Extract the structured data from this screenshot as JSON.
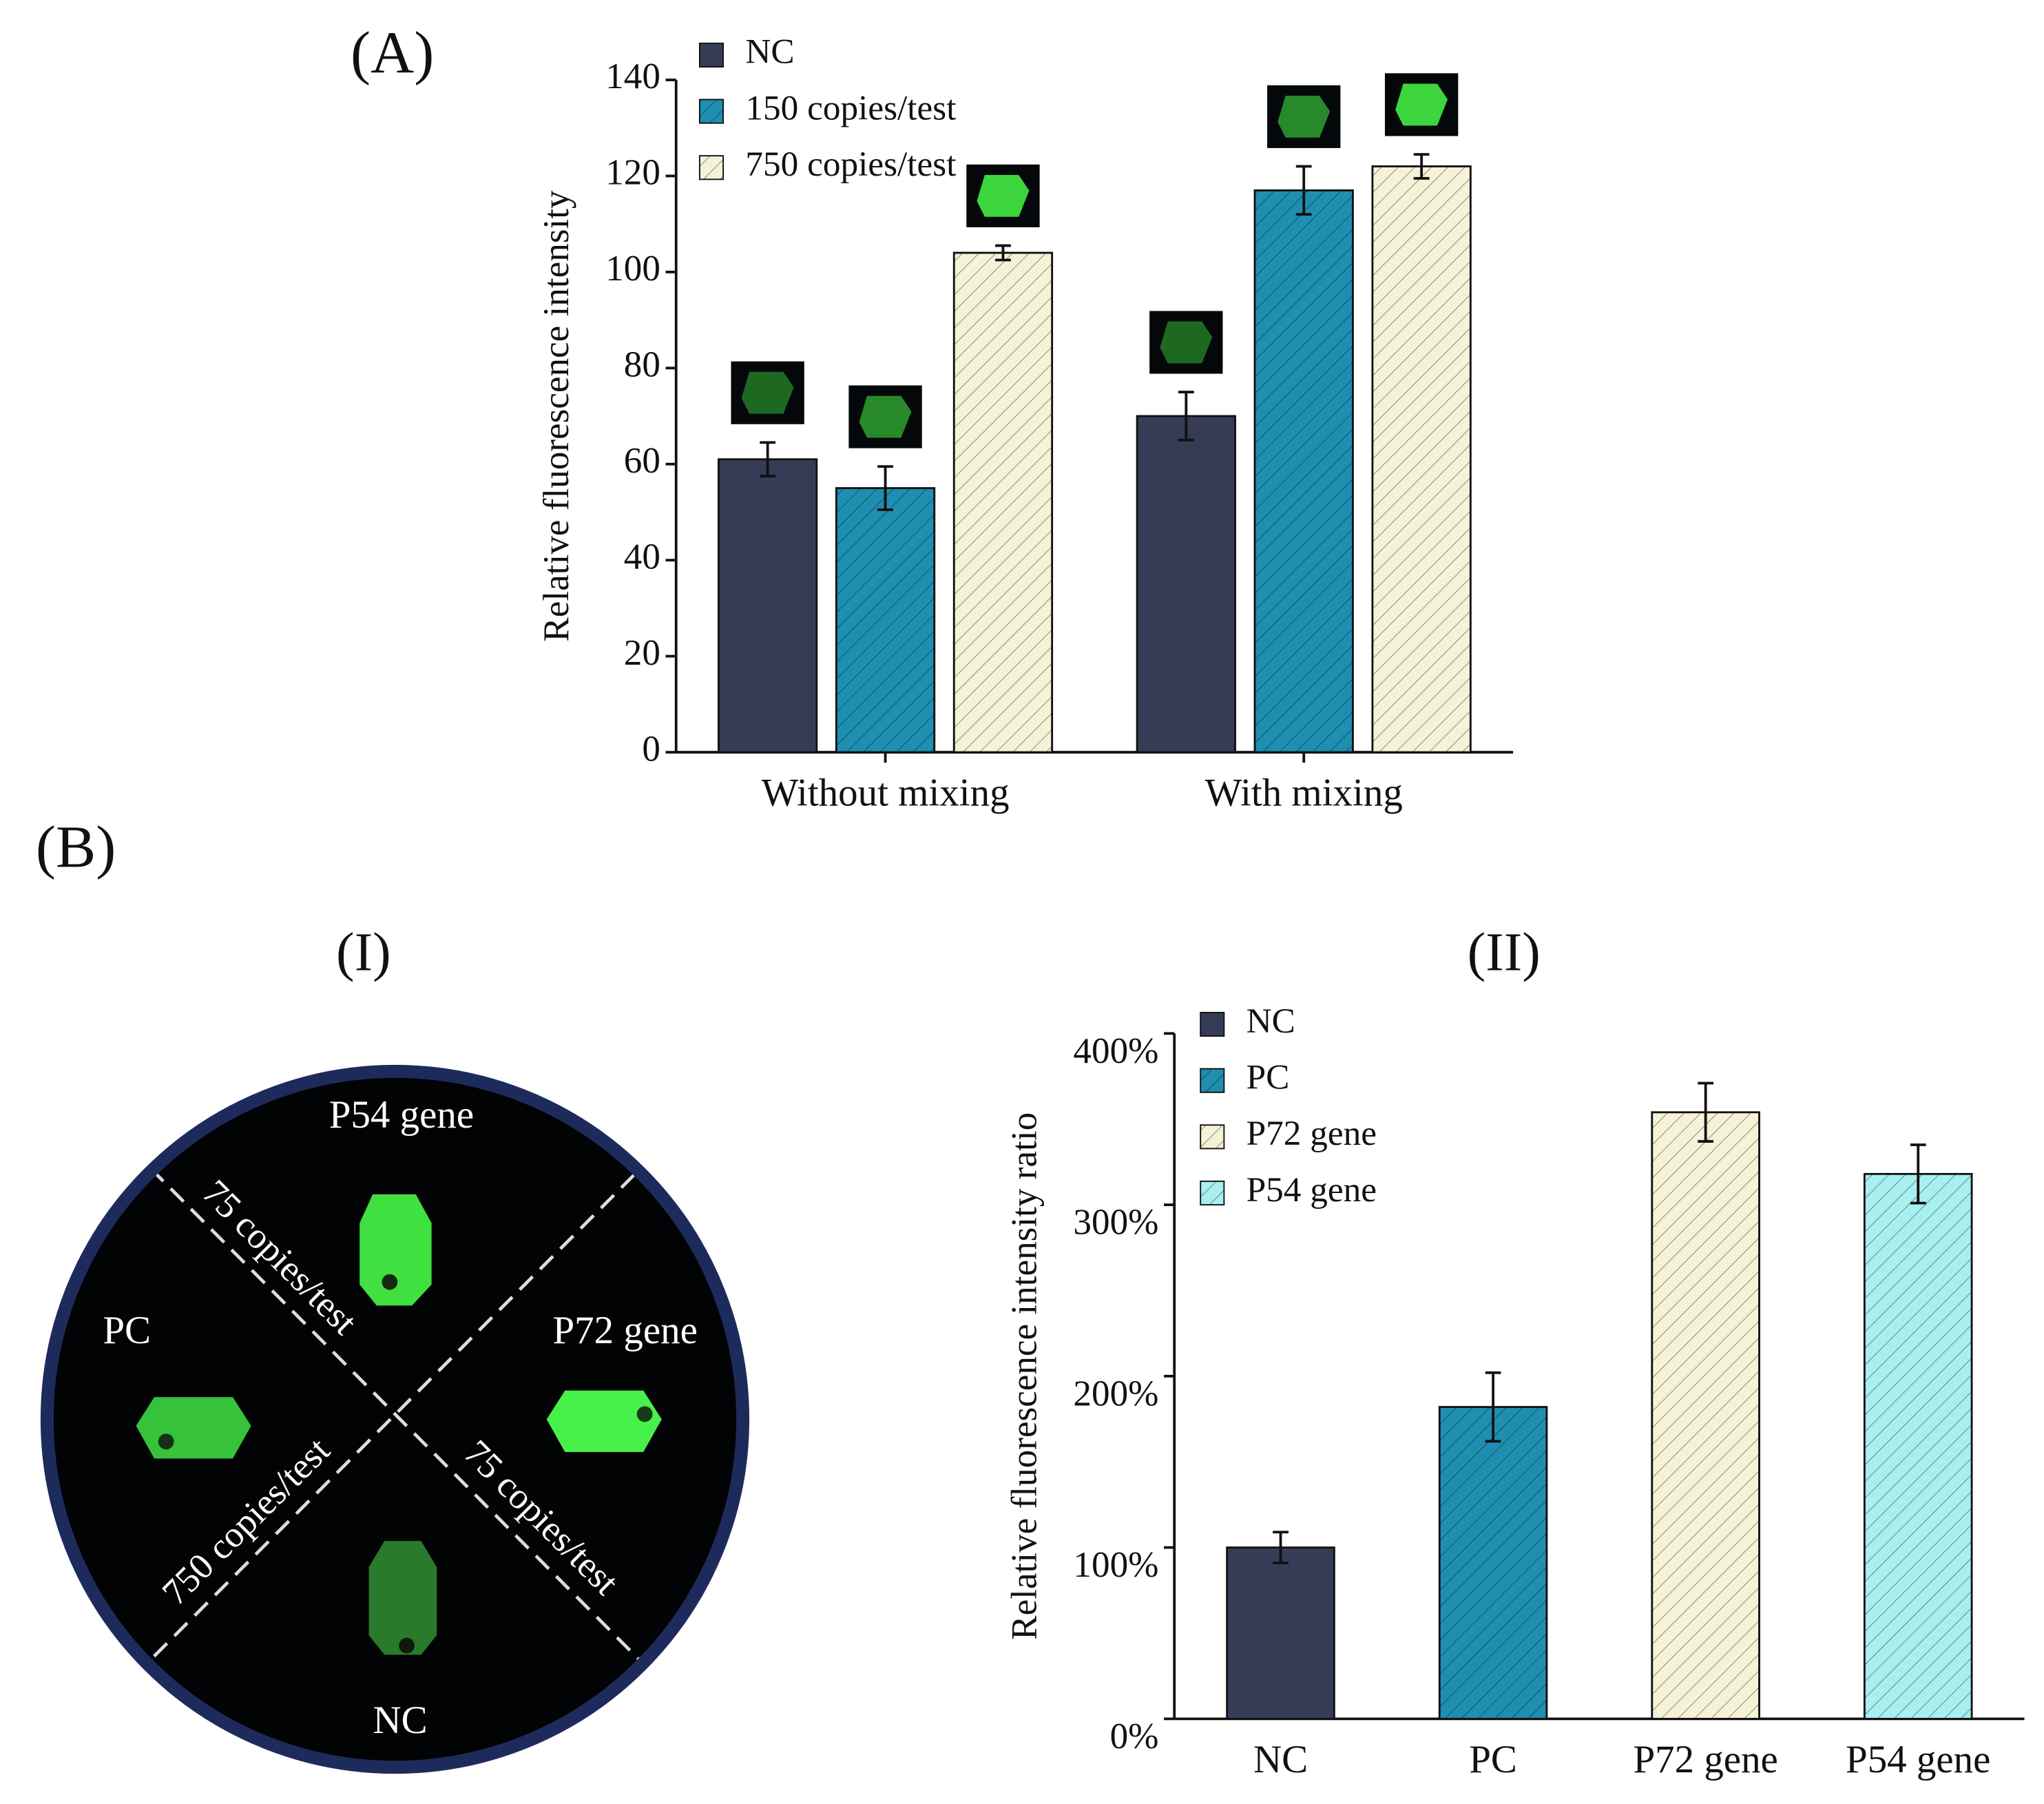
{
  "panels": {
    "A": "(A)",
    "B": "(B)",
    "B_I": "(I)",
    "B_II": "(II)"
  },
  "photo": {
    "labels": [
      "P54 gene",
      "PC",
      "P72 gene",
      "NC"
    ],
    "dividers": [
      "75 copies/test",
      "750 copies/test",
      "75 copies/test"
    ]
  },
  "chart_data": [
    {
      "type": "grouped-bar",
      "ylabel": "Relative fluorescence intensity",
      "categories": [
        "Without mixing",
        "With mixing"
      ],
      "series": [
        {
          "name": "NC",
          "color": "#363c56",
          "hatch": false,
          "values": [
            61,
            70
          ],
          "errors": [
            3.5,
            5
          ]
        },
        {
          "name": "150 copies/test",
          "color": "#1e8fb0",
          "hatch": true,
          "values": [
            55,
            117
          ],
          "errors": [
            4.5,
            5
          ]
        },
        {
          "name": "750 copies/test",
          "color": "#f5f2d8",
          "hatch": true,
          "values": [
            104,
            122
          ],
          "errors": [
            1.5,
            2.5
          ]
        }
      ],
      "ylim": [
        0,
        140
      ],
      "yticks": [
        0,
        20,
        40,
        60,
        80,
        100,
        120,
        140
      ],
      "legend": "upper left"
    },
    {
      "type": "bar",
      "ylabel": "Relative fluorescence intensity ratio",
      "categories": [
        "NC",
        "PC",
        "P72 gene",
        "P54 gene"
      ],
      "values": [
        100,
        182,
        354,
        318
      ],
      "errors": [
        9,
        20,
        17,
        17
      ],
      "colors": [
        "#363c56",
        "#1e8fb0",
        "#f5f2d8",
        "#a8f0f0"
      ],
      "hatches": [
        false,
        true,
        true,
        true
      ],
      "ylim": [
        0,
        400
      ],
      "yticks": [
        {
          "value": 0,
          "label": "0%"
        },
        {
          "value": 100,
          "label": "100%"
        },
        {
          "value": 200,
          "label": "200%"
        },
        {
          "value": 300,
          "label": "300%"
        },
        {
          "value": 400,
          "label": "400%"
        }
      ],
      "legend": "upper left"
    }
  ]
}
